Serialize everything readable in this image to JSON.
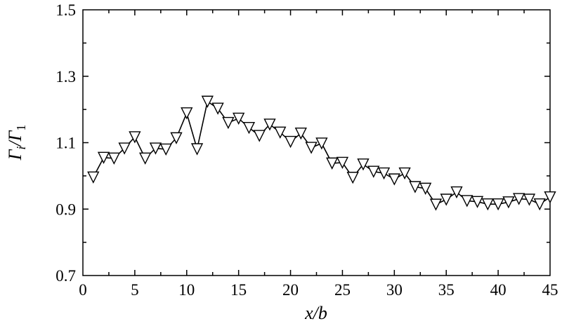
{
  "chart_data": {
    "type": "line",
    "title": "",
    "xlabel": "x/b",
    "ylabel": "Γi/Γ1",
    "ylabel_parts": {
      "main": "Γ",
      "sub": "i",
      "sep": "/",
      "main2": "Γ",
      "sub2": "1"
    },
    "xlim": [
      0,
      45
    ],
    "ylim": [
      0.7,
      1.5
    ],
    "xticks": [
      0,
      5,
      10,
      15,
      20,
      25,
      30,
      35,
      40,
      45
    ],
    "xtick_labels": [
      "0",
      "5",
      "10",
      "15",
      "20",
      "25",
      "30",
      "35",
      "40",
      "45"
    ],
    "yticks": [
      0.7,
      0.9,
      1.1,
      1.3,
      1.5
    ],
    "ytick_labels": [
      "0.7",
      "0.9",
      "1.1",
      "1.3",
      "1.5"
    ],
    "grid": false,
    "marker": "triangle-down-open",
    "line_color": "#000000",
    "series": [
      {
        "x": [
          1,
          2,
          3,
          4,
          5,
          6,
          7,
          8,
          9,
          10,
          11,
          12,
          13,
          14,
          15,
          16,
          17,
          18,
          19,
          20,
          21,
          22,
          23,
          24,
          25,
          26,
          27,
          28,
          29,
          30,
          31,
          32,
          33,
          34,
          35,
          36,
          37,
          38,
          39,
          40,
          41,
          42,
          43,
          44,
          45
        ],
        "y": [
          0.996,
          1.055,
          1.053,
          1.083,
          1.117,
          1.053,
          1.083,
          1.08,
          1.114,
          1.189,
          1.081,
          1.224,
          1.203,
          1.16,
          1.173,
          1.145,
          1.121,
          1.155,
          1.131,
          1.103,
          1.128,
          1.085,
          1.098,
          1.038,
          1.04,
          0.995,
          1.035,
          1.013,
          1.008,
          0.99,
          1.008,
          0.967,
          0.962,
          0.914,
          0.929,
          0.951,
          0.925,
          0.922,
          0.915,
          0.915,
          0.921,
          0.931,
          0.929,
          0.915,
          0.936
        ]
      }
    ]
  }
}
